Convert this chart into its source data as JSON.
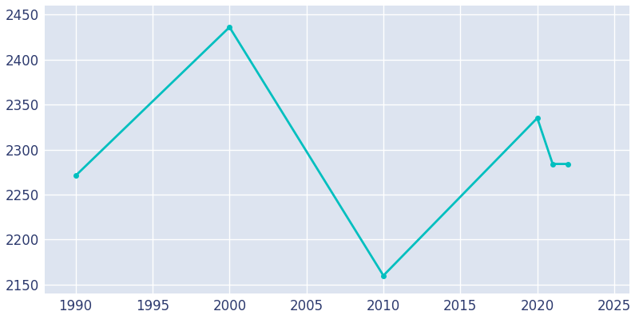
{
  "years": [
    1990,
    2000,
    2010,
    2020,
    2021,
    2022
  ],
  "population": [
    2271,
    2436,
    2160,
    2335,
    2284,
    2284
  ],
  "line_color": "#00bfbf",
  "plot_bg_color": "#dde4f0",
  "fig_bg_color": "#ffffff",
  "grid_color": "#ffffff",
  "xlim": [
    1988,
    2026
  ],
  "ylim": [
    2140,
    2460
  ],
  "xticks": [
    1990,
    1995,
    2000,
    2005,
    2010,
    2015,
    2020,
    2025
  ],
  "yticks": [
    2150,
    2200,
    2250,
    2300,
    2350,
    2400,
    2450
  ],
  "linewidth": 2.0,
  "marker_size": 4,
  "tick_color": "#2d3a6e",
  "tick_fontsize": 12,
  "figsize": [
    8.0,
    4.0
  ],
  "dpi": 100
}
